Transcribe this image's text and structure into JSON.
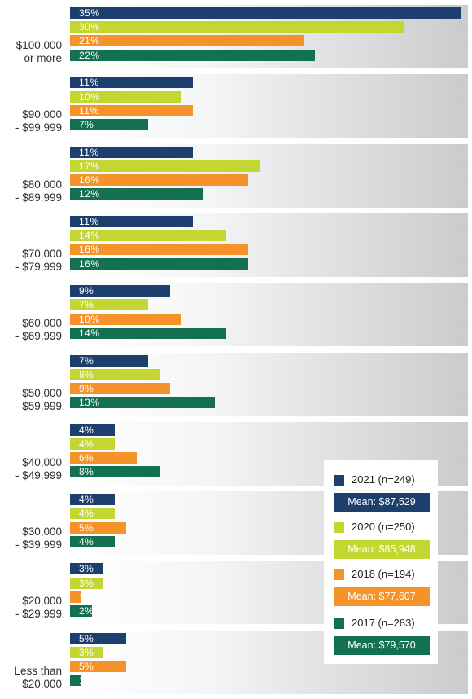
{
  "colors": {
    "2021": "#1d3f6e",
    "2020": "#c4d631",
    "2018": "#f5922a",
    "2017": "#137150"
  },
  "chart_data": {
    "type": "bar",
    "orientation": "horizontal",
    "categories": [
      "$100,000\nor more",
      "$90,000\n- $99,999",
      "$80,000\n- $89,999",
      "$70,000\n- $79,999",
      "$60,000\n- $69,999",
      "$50,000\n- $59,999",
      "$40,000\n- $49,999",
      "$30,000\n- $39,999",
      "$20,000\n- $29,999",
      "Less than\n$20,000"
    ],
    "series": [
      {
        "name": "2021 (n=249)",
        "key": "2021",
        "mean": "Mean: $87,529",
        "values": [
          35,
          11,
          11,
          11,
          9,
          7,
          4,
          4,
          3,
          5
        ]
      },
      {
        "name": "2020 (n=250)",
        "key": "2020",
        "mean": "Mean: $85,948",
        "values": [
          30,
          10,
          17,
          14,
          7,
          8,
          4,
          4,
          3,
          3
        ]
      },
      {
        "name": "2018 (n=194)",
        "key": "2018",
        "mean": "Mean: $77,607",
        "values": [
          21,
          11,
          16,
          16,
          10,
          9,
          6,
          5,
          1,
          5
        ]
      },
      {
        "name": "2017 (n=283)",
        "key": "2017",
        "mean": "Mean: $79,570",
        "values": [
          22,
          7,
          12,
          16,
          14,
          13,
          8,
          4,
          2,
          1
        ]
      }
    ],
    "value_suffix": "%",
    "xlim": [
      0,
      35
    ],
    "legend": "bottom-right",
    "grid": false
  }
}
